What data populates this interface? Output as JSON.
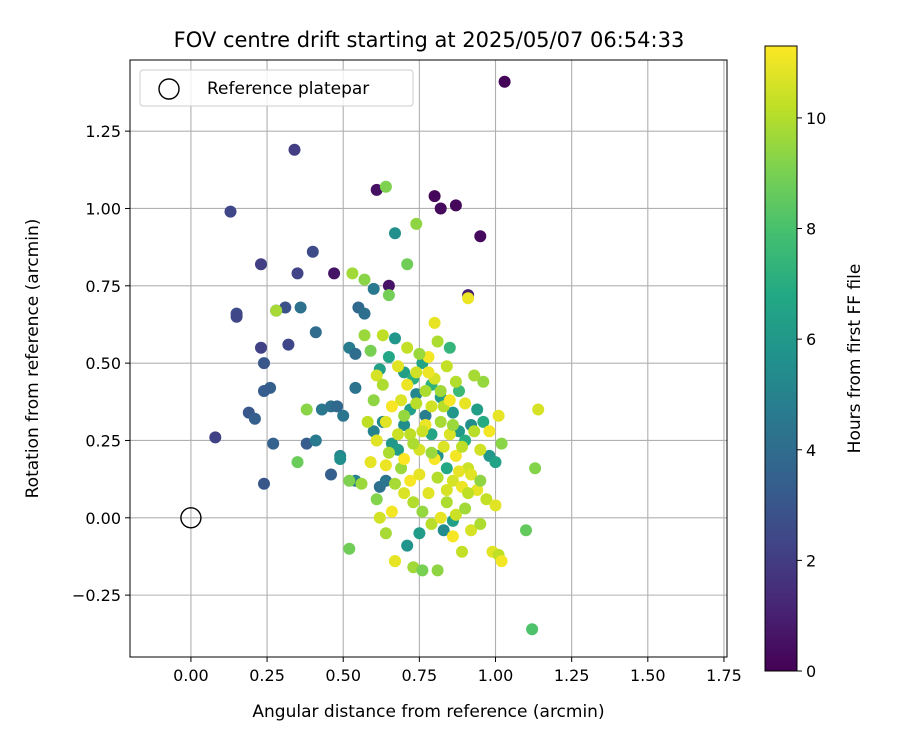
{
  "chart_data": {
    "type": "scatter",
    "title": "FOV centre drift starting at 2025/05/07 06:54:33",
    "xlabel": "Angular distance from reference (arcmin)",
    "ylabel": "Rotation from reference (arcmin)",
    "xlim": [
      -0.2,
      1.76
    ],
    "ylim": [
      -0.45,
      1.48
    ],
    "xticks": [
      "0.00",
      "0.25",
      "0.50",
      "0.75",
      "1.00",
      "1.25",
      "1.50",
      "1.75"
    ],
    "yticks": [
      "−0.25",
      "0.00",
      "0.25",
      "0.50",
      "0.75",
      "1.00",
      "1.25"
    ],
    "grid": true,
    "legend": {
      "position": "top-left",
      "entries": [
        "Reference platepar"
      ]
    },
    "colorbar": {
      "label": "Hours from first FF file",
      "ticks": [
        "0",
        "2",
        "4",
        "6",
        "8",
        "10"
      ],
      "range": [
        0,
        11.3
      ],
      "colormap": "viridis"
    },
    "reference_point": {
      "x": 0.0,
      "y": 0.0,
      "label": "Reference platepar"
    },
    "series": [
      {
        "points": [
          [
            1.03,
            1.41,
            0.1
          ],
          [
            0.8,
            1.04,
            0.2
          ],
          [
            0.87,
            1.01,
            0.2
          ],
          [
            0.82,
            1.0,
            0.3
          ],
          [
            0.95,
            0.91,
            0.3
          ],
          [
            0.61,
            1.06,
            0.5
          ],
          [
            0.47,
            0.79,
            0.6
          ],
          [
            0.65,
            0.75,
            0.6
          ],
          [
            0.91,
            0.72,
            0.9
          ],
          [
            0.34,
            1.19,
            2.0
          ],
          [
            0.13,
            0.99,
            2.4
          ],
          [
            0.23,
            0.82,
            2.1
          ],
          [
            0.35,
            0.79,
            2.3
          ],
          [
            0.4,
            0.86,
            2.6
          ],
          [
            0.15,
            0.66,
            2.6
          ],
          [
            0.15,
            0.65,
            2.4
          ],
          [
            0.31,
            0.68,
            2.8
          ],
          [
            0.28,
            0.67,
            3.4
          ],
          [
            0.36,
            0.68,
            4.2
          ],
          [
            0.23,
            0.55,
            2.2
          ],
          [
            0.32,
            0.56,
            2.4
          ],
          [
            0.41,
            0.6,
            4.0
          ],
          [
            0.24,
            0.5,
            3.0
          ],
          [
            0.26,
            0.42,
            3.4
          ],
          [
            0.24,
            0.41,
            3.3
          ],
          [
            0.19,
            0.34,
            3.1
          ],
          [
            0.21,
            0.32,
            3.4
          ],
          [
            0.08,
            0.26,
            2.2
          ],
          [
            0.27,
            0.24,
            3.5
          ],
          [
            0.24,
            0.11,
            3.0
          ],
          [
            0.38,
            0.24,
            3.3
          ],
          [
            0.41,
            0.25,
            4.6
          ],
          [
            0.43,
            0.35,
            4.5
          ],
          [
            0.46,
            0.36,
            4.2
          ],
          [
            0.48,
            0.36,
            3.8
          ],
          [
            0.5,
            0.33,
            4.4
          ],
          [
            0.52,
            0.55,
            4.7
          ],
          [
            0.54,
            0.53,
            4.0
          ],
          [
            0.55,
            0.68,
            3.8
          ],
          [
            0.57,
            0.66,
            4.1
          ],
          [
            0.6,
            0.74,
            4.6
          ],
          [
            0.67,
            0.92,
            5.6
          ],
          [
            0.54,
            0.42,
            4.3
          ],
          [
            0.46,
            0.14,
            3.4
          ],
          [
            0.49,
            0.2,
            5.2
          ],
          [
            0.49,
            0.19,
            5.6
          ],
          [
            0.54,
            0.12,
            4.9
          ],
          [
            0.62,
            0.1,
            4.2
          ],
          [
            0.64,
            0.12,
            4.4
          ],
          [
            0.71,
            -0.09,
            5.8
          ],
          [
            0.75,
            -0.05,
            6.2
          ],
          [
            0.83,
            -0.04,
            5.4
          ],
          [
            0.86,
            -0.01,
            6.4
          ],
          [
            0.6,
            0.28,
            5.0
          ],
          [
            0.63,
            0.31,
            5.3
          ],
          [
            0.66,
            0.24,
            6.0
          ],
          [
            0.68,
            0.22,
            6.2
          ],
          [
            0.7,
            0.3,
            5.5
          ],
          [
            0.72,
            0.35,
            6.4
          ],
          [
            0.74,
            0.4,
            5.2
          ],
          [
            0.77,
            0.33,
            4.8
          ],
          [
            0.79,
            0.27,
            6.6
          ],
          [
            0.81,
            0.2,
            5.7
          ],
          [
            0.84,
            0.16,
            6.8
          ],
          [
            0.86,
            0.34,
            5.9
          ],
          [
            0.88,
            0.28,
            6.1
          ],
          [
            0.9,
            0.25,
            7.0
          ],
          [
            0.92,
            0.3,
            5.5
          ],
          [
            0.94,
            0.35,
            6.3
          ],
          [
            0.96,
            0.31,
            6.9
          ],
          [
            0.98,
            0.2,
            6.0
          ],
          [
            1.0,
            0.18,
            6.5
          ],
          [
            0.62,
            0.48,
            6.4
          ],
          [
            0.65,
            0.52,
            6.7
          ],
          [
            0.67,
            0.58,
            5.9
          ],
          [
            0.7,
            0.47,
            6.3
          ],
          [
            0.73,
            0.45,
            7.1
          ],
          [
            0.76,
            0.5,
            6.6
          ],
          [
            0.79,
            0.43,
            7.2
          ],
          [
            0.82,
            0.39,
            6.2
          ],
          [
            0.85,
            0.55,
            7.4
          ],
          [
            0.88,
            0.41,
            7.6
          ],
          [
            0.52,
            -0.1,
            8.8
          ],
          [
            0.65,
            0.72,
            8.9
          ],
          [
            0.71,
            0.82,
            8.8
          ],
          [
            0.74,
            0.95,
            9.4
          ],
          [
            0.53,
            0.79,
            9.7
          ],
          [
            0.57,
            0.77,
            9.3
          ],
          [
            0.57,
            0.59,
            9.6
          ],
          [
            0.59,
            0.54,
            9.0
          ],
          [
            0.63,
            0.59,
            10.2
          ],
          [
            0.64,
            1.07,
            9.1
          ],
          [
            0.28,
            0.67,
            9.8
          ],
          [
            0.38,
            0.35,
            9.3
          ],
          [
            0.35,
            0.18,
            8.7
          ],
          [
            0.52,
            0.12,
            9.1
          ],
          [
            0.56,
            0.11,
            9.6
          ],
          [
            0.61,
            0.06,
            9.2
          ],
          [
            0.64,
            -0.05,
            9.8
          ],
          [
            0.67,
            -0.14,
            10.4
          ],
          [
            0.73,
            -0.16,
            9.7
          ],
          [
            0.76,
            -0.17,
            9.0
          ],
          [
            0.81,
            -0.17,
            9.4
          ],
          [
            0.92,
            -0.04,
            10.6
          ],
          [
            0.95,
            -0.02,
            9.9
          ],
          [
            0.99,
            -0.11,
            10.8
          ],
          [
            1.01,
            -0.12,
            10.2
          ],
          [
            1.1,
            -0.04,
            8.6
          ],
          [
            1.12,
            -0.36,
            8.1
          ],
          [
            1.13,
            0.16,
            9.2
          ],
          [
            1.14,
            0.35,
            10.6
          ],
          [
            1.01,
            0.33,
            10.9
          ],
          [
            1.02,
            0.24,
            9.3
          ],
          [
            0.96,
            0.44,
            9.5
          ],
          [
            0.93,
            0.46,
            9.8
          ],
          [
            0.91,
            0.71,
            11.0
          ],
          [
            0.59,
            0.18,
            10.9
          ],
          [
            0.62,
            0.0,
            10.5
          ],
          [
            0.66,
            0.02,
            11.1
          ],
          [
            0.67,
            -0.14,
            10.9
          ],
          [
            0.7,
            0.08,
            10.7
          ],
          [
            0.72,
            0.12,
            11.2
          ],
          [
            0.75,
            0.14,
            10.9
          ],
          [
            0.78,
            0.08,
            10.8
          ],
          [
            0.8,
            0.19,
            11.2
          ],
          [
            0.83,
            0.23,
            10.7
          ],
          [
            0.86,
            0.12,
            10.6
          ],
          [
            0.89,
            0.1,
            11.0
          ],
          [
            0.91,
            0.16,
            10.4
          ],
          [
            0.94,
            0.09,
            10.9
          ],
          [
            0.97,
            0.06,
            10.3
          ],
          [
            1.0,
            0.04,
            10.8
          ],
          [
            1.02,
            -0.14,
            11.1
          ],
          [
            0.89,
            -0.11,
            10.3
          ],
          [
            0.86,
            -0.06,
            11.2
          ],
          [
            0.8,
            0.63,
            10.9
          ],
          [
            0.78,
            0.52,
            11.1
          ],
          [
            0.74,
            0.47,
            10.5
          ],
          [
            0.71,
            0.43,
            11.0
          ],
          [
            0.69,
            0.38,
            10.7
          ],
          [
            0.66,
            0.36,
            11.2
          ],
          [
            0.64,
            0.31,
            10.8
          ],
          [
            0.61,
            0.46,
            10.6
          ],
          [
            0.81,
            0.57,
            9.9
          ],
          [
            0.84,
            0.49,
            10.3
          ],
          [
            0.87,
            0.44,
            10.0
          ],
          [
            0.9,
            0.37,
            10.9
          ],
          [
            0.93,
            0.28,
            10.1
          ],
          [
            0.95,
            0.22,
            10.5
          ],
          [
            0.98,
            0.28,
            11.1
          ],
          [
            0.72,
            0.27,
            10.2
          ],
          [
            0.75,
            0.22,
            10.6
          ],
          [
            0.77,
            0.3,
            11.0
          ],
          [
            0.79,
            0.36,
            10.5
          ],
          [
            0.82,
            0.31,
            9.8
          ],
          [
            0.85,
            0.27,
            10.7
          ],
          [
            0.87,
            0.2,
            11.1
          ],
          [
            0.69,
            0.16,
            9.6
          ],
          [
            0.73,
            0.05,
            10.0
          ],
          [
            0.76,
            0.02,
            9.5
          ],
          [
            0.79,
            -0.02,
            10.1
          ],
          [
            0.82,
            0.0,
            10.9
          ],
          [
            0.84,
            0.05,
            9.9
          ],
          [
            0.87,
            0.01,
            10.4
          ],
          [
            0.9,
            0.03,
            9.7
          ],
          [
            0.65,
            0.21,
            9.9
          ],
          [
            0.68,
            0.27,
            10.4
          ],
          [
            0.7,
            0.33,
            9.5
          ],
          [
            0.74,
            0.37,
            10.1
          ],
          [
            0.77,
            0.41,
            9.9
          ],
          [
            0.8,
            0.45,
            10.6
          ],
          [
            0.83,
            0.36,
            10.1
          ],
          [
            0.86,
            0.3,
            9.6
          ],
          [
            0.89,
            0.23,
            10.2
          ],
          [
            0.92,
            0.14,
            10.8
          ],
          [
            0.95,
            0.12,
            9.4
          ],
          [
            0.6,
            0.38,
            9.4
          ],
          [
            0.63,
            0.43,
            9.9
          ],
          [
            0.68,
            0.49,
            10.8
          ],
          [
            0.71,
            0.55,
            10.3
          ],
          [
            0.75,
            0.53,
            9.6
          ],
          [
            0.78,
            0.47,
            11.0
          ],
          [
            0.82,
            0.41,
            9.7
          ],
          [
            0.85,
            0.38,
            11.2
          ],
          [
            0.58,
            0.31,
            10.2
          ],
          [
            0.61,
            0.25,
            10.8
          ],
          [
            0.64,
            0.17,
            11.0
          ],
          [
            0.67,
            0.11,
            9.8
          ],
          [
            0.7,
            0.19,
            11.3
          ],
          [
            0.73,
            0.24,
            9.9
          ],
          [
            0.76,
            0.28,
            10.4
          ],
          [
            0.79,
            0.21,
            9.6
          ],
          [
            0.81,
            0.13,
            10.0
          ],
          [
            0.84,
            0.09,
            10.6
          ],
          [
            0.88,
            0.15,
            10.9
          ],
          [
            0.91,
            0.08,
            10.2
          ]
        ]
      }
    ]
  }
}
